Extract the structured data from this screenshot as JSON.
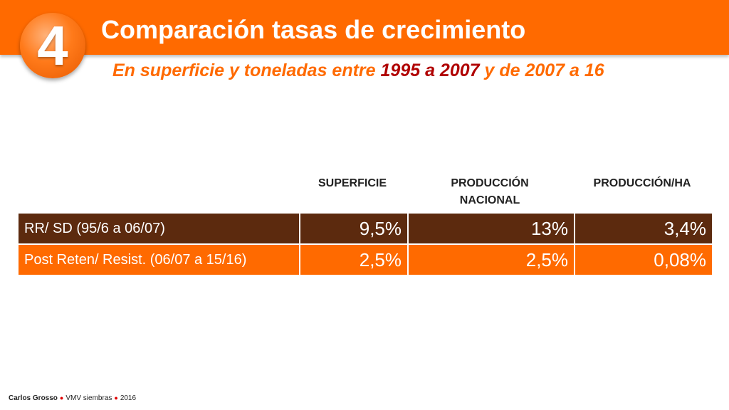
{
  "slide": {
    "number": "4",
    "title": "Comparación tasas de crecimiento",
    "subtitle": {
      "part1": "En superficie y toneladas entre ",
      "highlight": "1995 a 2007",
      "part2": " y de 2007 a 16"
    }
  },
  "table": {
    "headers": [
      "SUPERFICIE",
      "PRODUCCIÓN\nNACIONAL",
      "PRODUCCIÓN/HA"
    ],
    "rows": [
      {
        "label": "RR/ SD (95/6 a 06/07)",
        "values": [
          "9,5%",
          "13%",
          "3,4%"
        ]
      },
      {
        "label": "Post Reten/ Resist. (06/07 a 15/16)",
        "values": [
          "2,5%",
          "2,5%",
          "0,08%"
        ]
      }
    ]
  },
  "footer": {
    "author": "Carlos Grosso",
    "org": "VMV siembras",
    "year": "2016"
  },
  "colors": {
    "accent_orange": "#ff6a00",
    "dark_brown": "#5c2a0e",
    "highlight_red": "#b00000"
  }
}
